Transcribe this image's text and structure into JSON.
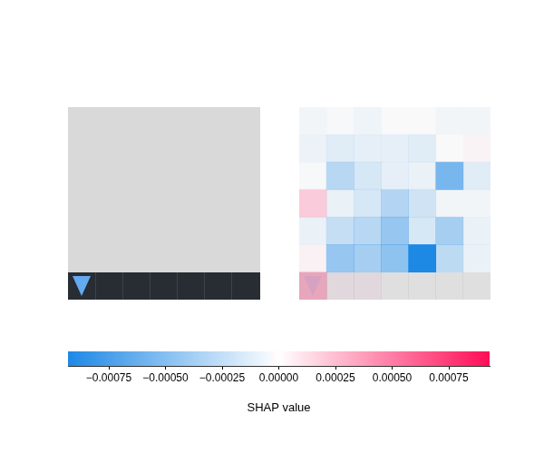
{
  "chart_data": {
    "type": "heatmap",
    "cells": [
      [
        -3e-05,
        -1e-05,
        -4e-05,
        0,
        0,
        -3e-05,
        -3e-05
      ],
      [
        -5e-05,
        -0.0001,
        -8e-05,
        -8e-05,
        -0.0001,
        0,
        2e-05
      ],
      [
        -1e-05,
        -0.00028,
        -0.00015,
        -8e-05,
        -6e-05,
        -0.00055,
        -0.0001
      ],
      [
        0.00018,
        -6e-05,
        -0.00015,
        -0.0003,
        -0.00018,
        -3e-05,
        -3e-05
      ],
      [
        -6e-05,
        -0.00022,
        -0.00028,
        -0.00042,
        -0.00015,
        -0.00035,
        -6e-05
      ],
      [
        3e-05,
        -0.00042,
        -0.00035,
        -0.00045,
        -0.00093,
        -0.00025,
        -6e-05
      ],
      [
        0.00025,
        3e-05,
        3e-05,
        0,
        0,
        0,
        0
      ]
    ],
    "color_range": [
      -0.00093,
      0.00093
    ],
    "color_ticks": [
      {
        "value": -0.00075,
        "label": "−0.00075"
      },
      {
        "value": -0.0005,
        "label": "−0.00050"
      },
      {
        "value": -0.00025,
        "label": "−0.00025"
      },
      {
        "value": 0,
        "label": "0.00000"
      },
      0.00025,
      {
        "value": 0.0005,
        "label": "0.00050"
      },
      0.00075
    ],
    "colorbar_label": "SHAP value"
  }
}
